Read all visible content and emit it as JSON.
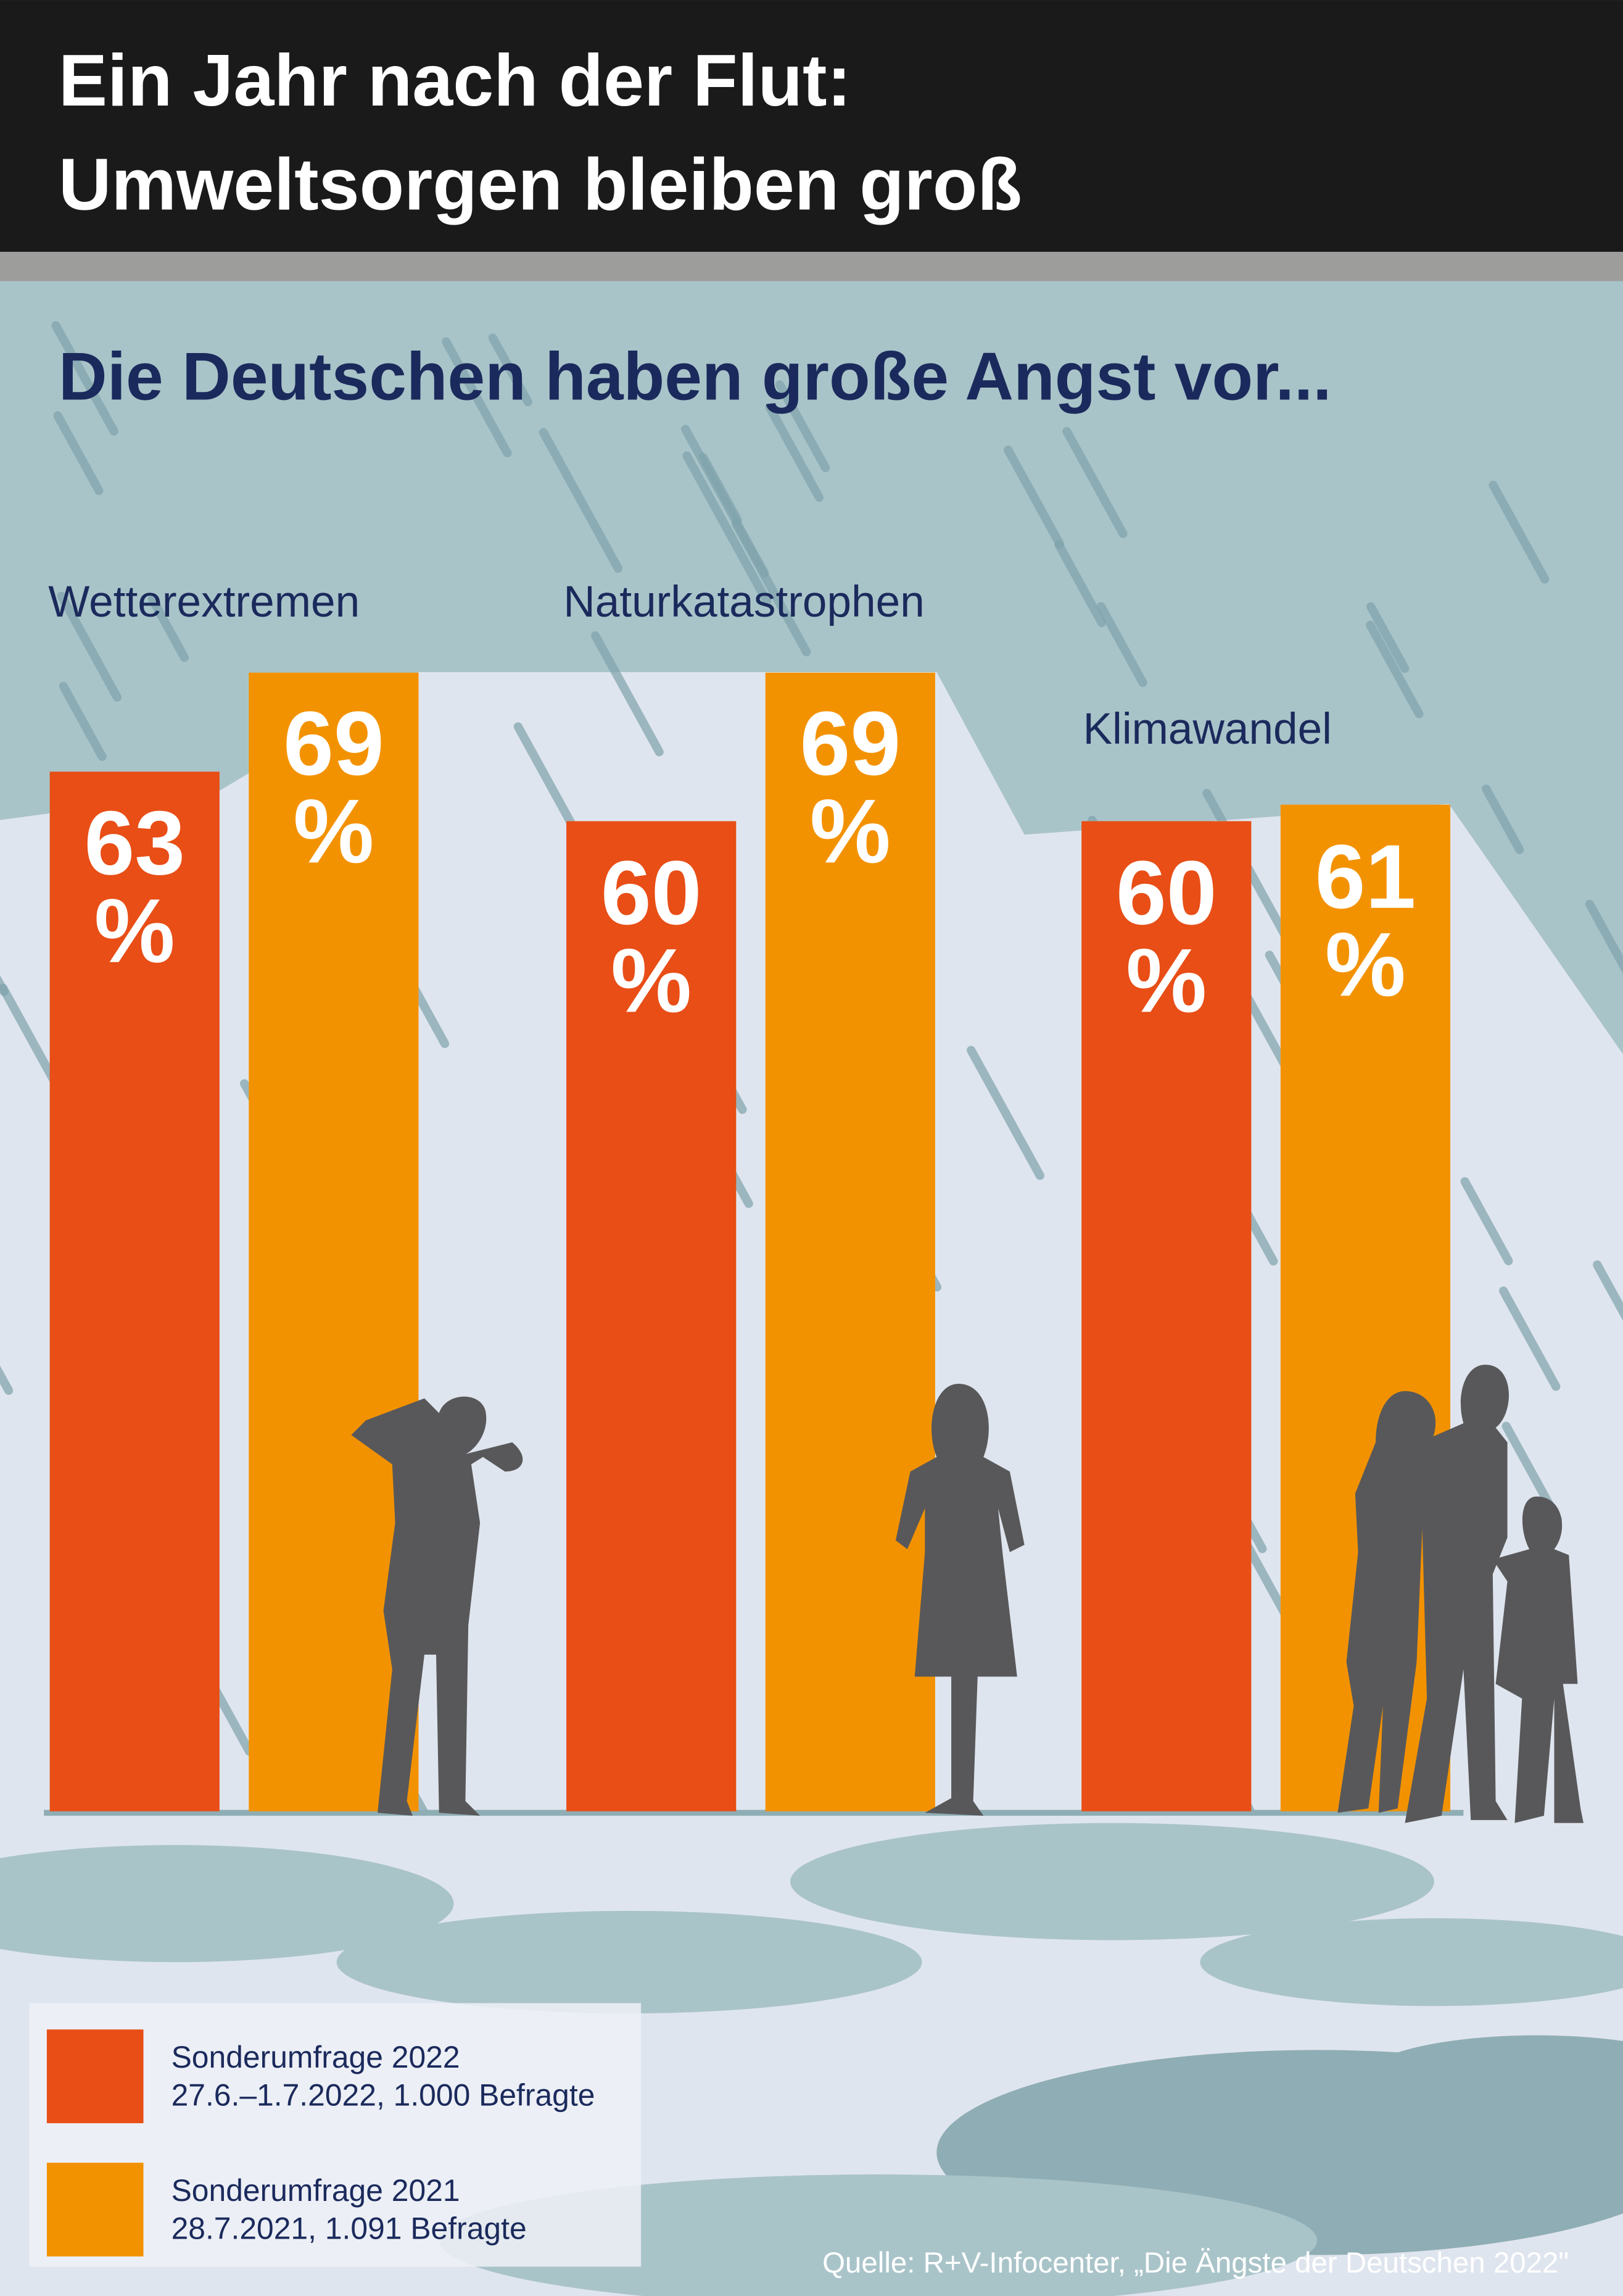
{
  "title": [
    "Ein Jahr nach der Flut:",
    "Umweltsorgen bleiben groß"
  ],
  "chart_data": {
    "type": "bar",
    "subtitle": "Die Deutschen haben große Angst vor...",
    "categories": [
      "Wetterextremen",
      "Naturkatastrophen",
      "Klimawandel"
    ],
    "series": [
      {
        "name": "Sonderumfrage 2022",
        "description": "27.6.–1.7.2022, 1.000 Befragte",
        "color": "#e84e16",
        "values": [
          63,
          60,
          60
        ],
        "value_labels": [
          "63 %",
          "60 %",
          "60 %"
        ]
      },
      {
        "name": "Sonderumfrage 2021",
        "description": "28.7.2021, 1.091 Befragte",
        "color": "#f39200",
        "values": [
          69,
          69,
          61
        ],
        "value_labels": [
          "69 %",
          "69 %",
          "61 %"
        ]
      }
    ],
    "source": "Quelle: R+V-Infocenter, „Die Ängste der Deutschen 2022\""
  }
}
